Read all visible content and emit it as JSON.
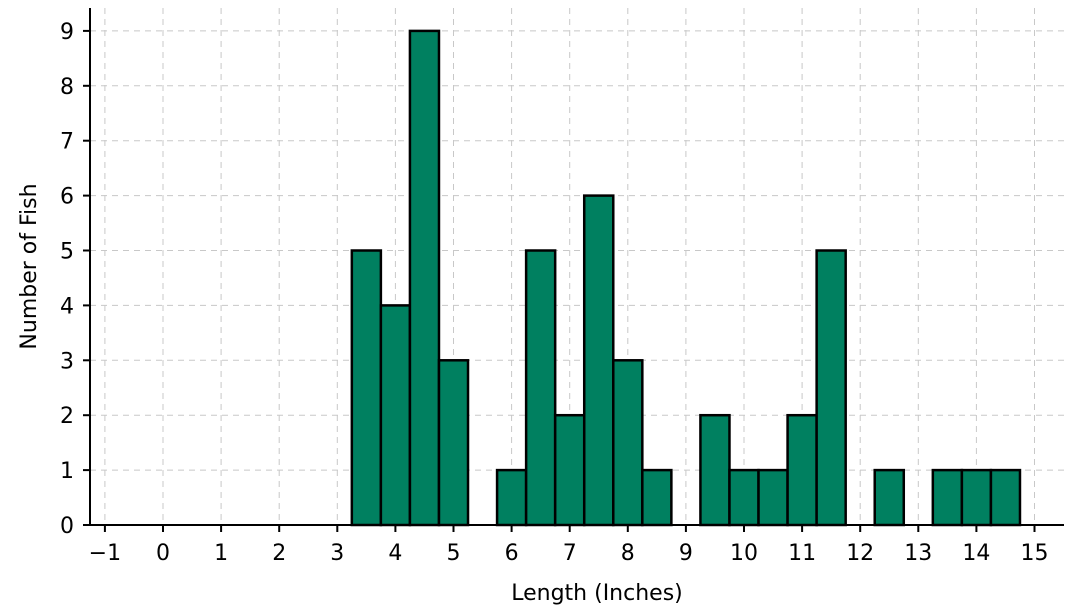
{
  "chart_data": {
    "type": "bar",
    "title": "",
    "xlabel": "Length (Inches)",
    "ylabel": "Number of Fish",
    "xlim": [
      -1.2,
      15.6
    ],
    "ylim": [
      0,
      9.2
    ],
    "grid": true,
    "bar_color": "#008060",
    "x_ticks": [
      -1,
      0,
      1,
      2,
      3,
      4,
      5,
      6,
      7,
      8,
      9,
      10,
      11,
      12,
      13,
      14,
      15
    ],
    "x_tick_labels": [
      "−1",
      "0",
      "1",
      "2",
      "3",
      "4",
      "5",
      "6",
      "7",
      "8",
      "9",
      "10",
      "11",
      "12",
      "13",
      "14",
      "15"
    ],
    "y_ticks": [
      0,
      1,
      2,
      3,
      4,
      5,
      6,
      7,
      8,
      9
    ],
    "y_tick_labels": [
      "0",
      "1",
      "2",
      "3",
      "4",
      "5",
      "6",
      "7",
      "8",
      "9"
    ],
    "bin_width": 0.5,
    "bins": [
      {
        "x": 3.5,
        "value": 5
      },
      {
        "x": 4.0,
        "value": 4
      },
      {
        "x": 4.5,
        "value": 9
      },
      {
        "x": 5.0,
        "value": 3
      },
      {
        "x": 6.0,
        "value": 1
      },
      {
        "x": 6.5,
        "value": 5
      },
      {
        "x": 7.0,
        "value": 2
      },
      {
        "x": 7.5,
        "value": 6
      },
      {
        "x": 8.0,
        "value": 3
      },
      {
        "x": 8.5,
        "value": 1
      },
      {
        "x": 9.5,
        "value": 2
      },
      {
        "x": 10.0,
        "value": 1
      },
      {
        "x": 10.5,
        "value": 1
      },
      {
        "x": 11.0,
        "value": 2
      },
      {
        "x": 11.5,
        "value": 5
      },
      {
        "x": 12.5,
        "value": 1
      },
      {
        "x": 13.5,
        "value": 1
      },
      {
        "x": 14.0,
        "value": 1
      },
      {
        "x": 14.5,
        "value": 1
      }
    ]
  }
}
